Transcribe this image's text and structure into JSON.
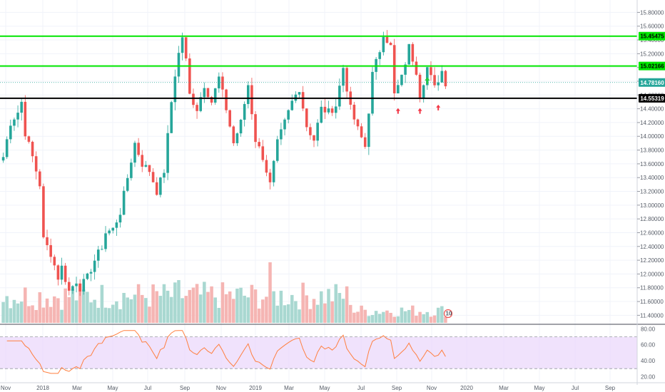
{
  "chart_data": {
    "type": "candlestick",
    "price_axis": {
      "ylim": [
        11.29,
        15.98
      ],
      "ticks": [
        "15.80000",
        "15.60000",
        "15.40000",
        "15.20000",
        "15.00000",
        "14.80000",
        "14.60000",
        "14.40000",
        "14.20000",
        "14.00000",
        "13.80000",
        "13.60000",
        "13.40000",
        "13.20000",
        "13.00000",
        "12.80000",
        "12.60000",
        "12.40000",
        "12.20000",
        "12.00000",
        "11.80000",
        "11.60000",
        "11.40000"
      ]
    },
    "time_axis": {
      "labels": [
        "Nov",
        "2018",
        "Mar",
        "May",
        "Jul",
        "Sep",
        "Nov",
        "2019",
        "Mar",
        "May",
        "Jul",
        "Sep",
        "Nov",
        "2020",
        "Mar",
        "May",
        "Jul",
        "Sep"
      ]
    },
    "price_path": [
      {
        "t": 0,
        "p": 13.7
      },
      {
        "t": 2,
        "p": 14.2
      },
      {
        "t": 4,
        "p": 14.35
      },
      {
        "t": 5,
        "p": 14.5
      },
      {
        "t": 6,
        "p": 14.05
      },
      {
        "t": 8,
        "p": 13.7
      },
      {
        "t": 10,
        "p": 13.3
      },
      {
        "t": 11,
        "p": 12.5
      },
      {
        "t": 13,
        "p": 12.3
      },
      {
        "t": 15,
        "p": 11.95
      },
      {
        "t": 16,
        "p": 12.1
      },
      {
        "t": 18,
        "p": 11.75
      },
      {
        "t": 20,
        "p": 11.9
      },
      {
        "t": 21,
        "p": 11.8
      },
      {
        "t": 23,
        "p": 11.95
      },
      {
        "t": 25,
        "p": 12.2
      },
      {
        "t": 27,
        "p": 12.4
      },
      {
        "t": 28,
        "p": 12.6
      },
      {
        "t": 30,
        "p": 12.65
      },
      {
        "t": 32,
        "p": 12.9
      },
      {
        "t": 34,
        "p": 13.4
      },
      {
        "t": 36,
        "p": 13.9
      },
      {
        "t": 38,
        "p": 13.6
      },
      {
        "t": 40,
        "p": 13.5
      },
      {
        "t": 42,
        "p": 13.2
      },
      {
        "t": 44,
        "p": 13.5
      },
      {
        "t": 46,
        "p": 14.5
      },
      {
        "t": 47,
        "p": 14.9
      },
      {
        "t": 48,
        "p": 15.2
      },
      {
        "t": 49,
        "p": 15.45
      },
      {
        "t": 50,
        "p": 15.1
      },
      {
        "t": 51,
        "p": 14.6
      },
      {
        "t": 53,
        "p": 14.4
      },
      {
        "t": 55,
        "p": 14.75
      },
      {
        "t": 57,
        "p": 14.5
      },
      {
        "t": 59,
        "p": 14.85
      },
      {
        "t": 61,
        "p": 14.4
      },
      {
        "t": 63,
        "p": 13.9
      },
      {
        "t": 65,
        "p": 14.2
      },
      {
        "t": 67,
        "p": 14.75
      },
      {
        "t": 69,
        "p": 13.95
      },
      {
        "t": 71,
        "p": 13.7
      },
      {
        "t": 73,
        "p": 13.3
      },
      {
        "t": 75,
        "p": 13.9
      },
      {
        "t": 77,
        "p": 14.2
      },
      {
        "t": 79,
        "p": 14.5
      },
      {
        "t": 81,
        "p": 14.7
      },
      {
        "t": 83,
        "p": 14.15
      },
      {
        "t": 85,
        "p": 13.95
      },
      {
        "t": 87,
        "p": 14.4
      },
      {
        "t": 89,
        "p": 14.35
      },
      {
        "t": 91,
        "p": 14.45
      },
      {
        "t": 93,
        "p": 15.0
      },
      {
        "t": 95,
        "p": 14.4
      },
      {
        "t": 97,
        "p": 14.1
      },
      {
        "t": 99,
        "p": 13.85
      },
      {
        "t": 101,
        "p": 14.9
      },
      {
        "t": 103,
        "p": 15.25
      },
      {
        "t": 104,
        "p": 15.5
      },
      {
        "t": 106,
        "p": 15.3
      },
      {
        "t": 107,
        "p": 14.6
      },
      {
        "t": 109,
        "p": 14.85
      },
      {
        "t": 111,
        "p": 15.3
      },
      {
        "t": 113,
        "p": 14.95
      },
      {
        "t": 114,
        "p": 14.6
      },
      {
        "t": 116,
        "p": 15.0
      },
      {
        "t": 117,
        "p": 14.85
      },
      {
        "t": 118,
        "p": 14.7
      },
      {
        "t": 120,
        "p": 14.95
      },
      {
        "t": 121,
        "p": 14.78
      }
    ],
    "horizontal_lines": [
      {
        "label": "15.45475",
        "value": 15.45475,
        "color": "#00e600",
        "kind": "resistance"
      },
      {
        "label": "15.02166",
        "value": 15.02166,
        "color": "#00e600",
        "kind": "resistance"
      },
      {
        "label": "14.55319",
        "value": 14.55319,
        "color": "#000000",
        "kind": "support"
      }
    ],
    "last_price": {
      "label": "14.78160",
      "value": 14.7816,
      "color": "#26a69a"
    },
    "arrows_up": [
      {
        "bar": 108,
        "price": 14.41,
        "color": "#f23645"
      },
      {
        "bar": 114,
        "price": 14.41,
        "color": "#f23645"
      },
      {
        "bar": 119,
        "price": 14.46,
        "color": "#f23645"
      }
    ],
    "arrow_green": {
      "bar": 116,
      "price": 14.86,
      "color": "#26c940"
    },
    "volume_label": "10",
    "rsi": {
      "ticks": [
        "80.00",
        "60.00",
        "40.00",
        "20.00"
      ],
      "ylim": [
        14,
        84
      ],
      "band": [
        30,
        70
      ],
      "color": "#ff7f3f",
      "band_color": "#e9d6fb"
    },
    "colors": {
      "up": "#26a69a",
      "down": "#ef5350",
      "grid": "#f0f3fa",
      "volume_up": "#a9d8d1",
      "volume_down": "#f5b5b3"
    }
  }
}
